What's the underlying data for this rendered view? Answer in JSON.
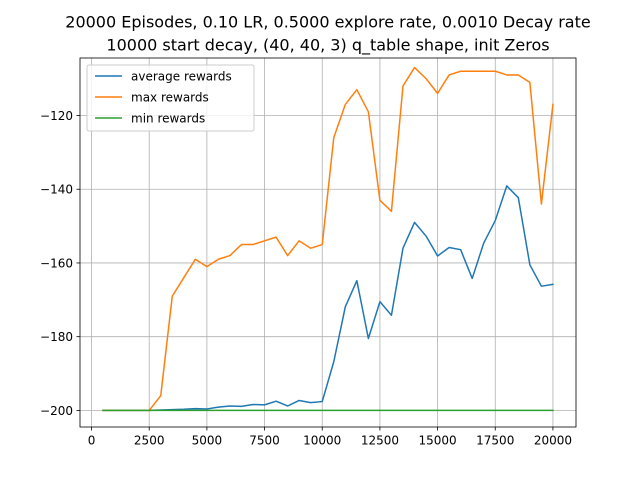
{
  "chart_data": {
    "type": "line",
    "title_lines": [
      "20000 Episodes, 0.10 LR, 0.5000 explore rate, 0.0010 Decay rate",
      "10000 start decay, (40, 40, 3) q_table shape, init Zeros"
    ],
    "xlabel": "",
    "ylabel": "",
    "xlim": [
      -500,
      21000
    ],
    "ylim": [
      -204.5,
      -104.4
    ],
    "x_ticks": [
      0,
      2500,
      5000,
      7500,
      10000,
      12500,
      15000,
      17500,
      20000
    ],
    "x_tick_labels": [
      "0",
      "2500",
      "5000",
      "7500",
      "10000",
      "12500",
      "15000",
      "17500",
      "20000"
    ],
    "y_ticks": [
      -200,
      -180,
      -160,
      -140,
      -120
    ],
    "y_tick_labels": [
      "−200",
      "−180",
      "−160",
      "−140",
      "−120"
    ],
    "grid": true,
    "legend_position": "upper-left",
    "x": [
      500,
      1000,
      1500,
      2000,
      2500,
      3000,
      3500,
      4000,
      4500,
      5000,
      5500,
      6000,
      6500,
      7000,
      7500,
      8000,
      8500,
      9000,
      9500,
      10000,
      10500,
      11000,
      11500,
      12000,
      12500,
      13000,
      13500,
      14000,
      14500,
      15000,
      15500,
      16000,
      16500,
      17000,
      17500,
      18000,
      18500,
      19000,
      19500,
      20000
    ],
    "series": [
      {
        "name": "average rewards",
        "color": "#1f77b4",
        "values": [
          -200,
          -200,
          -200,
          -200,
          -200,
          -199.9,
          -199.8,
          -199.7,
          -199.5,
          -199.6,
          -199.1,
          -198.8,
          -198.9,
          -198.4,
          -198.5,
          -197.5,
          -198.8,
          -197.3,
          -197.9,
          -197.6,
          -186.8,
          -171.9,
          -164.8,
          -180.5,
          -170.5,
          -174.2,
          -156,
          -149,
          -152.7,
          -158.1,
          -155.8,
          -156.4,
          -164.2,
          -154.6,
          -148.5,
          -139.1,
          -142.3,
          -160.5,
          -166.3,
          -165.8
        ]
      },
      {
        "name": "max rewards",
        "color": "#ff7f0e",
        "values": [
          -200,
          -200,
          -200,
          -200,
          -200,
          -196,
          -169,
          -164,
          -159,
          -161,
          -159,
          -158,
          -155,
          -155,
          -154,
          -153,
          -158,
          -154,
          -156,
          -155,
          -126,
          -117,
          -113,
          -119,
          -143,
          -146,
          -112,
          -107,
          -110,
          -114,
          -109,
          -108,
          -108,
          -108,
          -108,
          -109,
          -109,
          -111,
          -144,
          -117
        ]
      },
      {
        "name": "min rewards",
        "color": "#2ca02c",
        "values": [
          -200,
          -200,
          -200,
          -200,
          -200,
          -200,
          -200,
          -200,
          -200,
          -200,
          -200,
          -200,
          -200,
          -200,
          -200,
          -200,
          -200,
          -200,
          -200,
          -200,
          -200,
          -200,
          -200,
          -200,
          -200,
          -200,
          -200,
          -200,
          -200,
          -200,
          -200,
          -200,
          -200,
          -200,
          -200,
          -200,
          -200,
          -200,
          -200,
          -200
        ]
      }
    ]
  }
}
